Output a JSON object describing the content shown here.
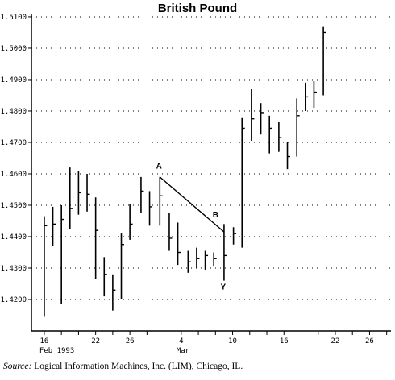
{
  "chart_data": {
    "type": "bar",
    "subtype": "ohlc-high-low-close",
    "title": "British Pound",
    "xlabel": "",
    "ylabel": "",
    "ylim": [
      1.41,
      1.5105
    ],
    "y_ticks": [
      "1.4200",
      "1.4300",
      "1.4400",
      "1.4500",
      "1.4600",
      "1.4700",
      "1.4800",
      "1.4900",
      "1.5000",
      "1.5100"
    ],
    "grid": "horizontal dotted",
    "x_ticks": [
      {
        "day": 16,
        "label": "16",
        "sub": "Feb 1993"
      },
      {
        "day": 18,
        "label": "",
        "sub": ""
      },
      {
        "day": 20,
        "label": "",
        "sub": ""
      },
      {
        "day": 22,
        "label": "22",
        "sub": ""
      },
      {
        "day": 24,
        "label": "",
        "sub": ""
      },
      {
        "day": 26,
        "label": "26",
        "sub": ""
      },
      {
        "day": 28,
        "label": "",
        "sub": ""
      },
      {
        "day": 32,
        "label": "4",
        "sub": "Mar"
      },
      {
        "day": 34,
        "label": "",
        "sub": ""
      },
      {
        "day": 36,
        "label": "",
        "sub": ""
      },
      {
        "day": 38,
        "label": "10",
        "sub": ""
      },
      {
        "day": 40,
        "label": "",
        "sub": ""
      },
      {
        "day": 42,
        "label": "",
        "sub": ""
      },
      {
        "day": 44,
        "label": "16",
        "sub": ""
      },
      {
        "day": 46,
        "label": "",
        "sub": ""
      },
      {
        "day": 48,
        "label": "",
        "sub": ""
      },
      {
        "day": 50,
        "label": "22",
        "sub": ""
      },
      {
        "day": 52,
        "label": "",
        "sub": ""
      },
      {
        "day": 54,
        "label": "26",
        "sub": ""
      },
      {
        "day": 56,
        "label": "",
        "sub": ""
      }
    ],
    "bars": [
      {
        "day": 16.0,
        "high": 1.4465,
        "low": 1.4145,
        "close": 1.4435
      },
      {
        "day": 17.0,
        "high": 1.4495,
        "low": 1.437,
        "close": 1.444
      },
      {
        "day": 18.0,
        "high": 1.45,
        "low": 1.4185,
        "close": 1.4455
      },
      {
        "day": 19.0,
        "high": 1.462,
        "low": 1.4425,
        "close": 1.449
      },
      {
        "day": 20.0,
        "high": 1.461,
        "low": 1.447,
        "close": 1.454
      },
      {
        "day": 21.0,
        "high": 1.46,
        "low": 1.448,
        "close": 1.4535
      },
      {
        "day": 22.0,
        "high": 1.4525,
        "low": 1.4265,
        "close": 1.442
      },
      {
        "day": 23.0,
        "high": 1.4335,
        "low": 1.421,
        "close": 1.428
      },
      {
        "day": 24.0,
        "high": 1.428,
        "low": 1.4165,
        "close": 1.423
      },
      {
        "day": 25.0,
        "high": 1.441,
        "low": 1.42,
        "close": 1.4375
      },
      {
        "day": 26.0,
        "high": 1.4505,
        "low": 1.439,
        "close": 1.444
      },
      {
        "day": 27.3,
        "high": 1.459,
        "low": 1.4475,
        "close": 1.4545
      },
      {
        "day": 28.3,
        "high": 1.4545,
        "low": 1.4435,
        "close": 1.4495
      },
      {
        "day": 29.5,
        "high": 1.459,
        "low": 1.4435,
        "close": 1.453
      },
      {
        "day": 30.6,
        "high": 1.4475,
        "low": 1.4355,
        "close": 1.4395
      },
      {
        "day": 31.6,
        "high": 1.4445,
        "low": 1.431,
        "close": 1.435
      },
      {
        "day": 32.8,
        "high": 1.4355,
        "low": 1.4285,
        "close": 1.432
      },
      {
        "day": 33.8,
        "high": 1.4365,
        "low": 1.43,
        "close": 1.433
      },
      {
        "day": 34.8,
        "high": 1.4355,
        "low": 1.4295,
        "close": 1.434
      },
      {
        "day": 35.8,
        "high": 1.435,
        "low": 1.4305,
        "close": 1.433
      },
      {
        "day": 37.0,
        "high": 1.444,
        "low": 1.426,
        "close": 1.434
      },
      {
        "day": 38.1,
        "high": 1.443,
        "low": 1.4375,
        "close": 1.441
      },
      {
        "day": 39.1,
        "high": 1.478,
        "low": 1.4365,
        "close": 1.4745
      },
      {
        "day": 40.2,
        "high": 1.487,
        "low": 1.4705,
        "close": 1.4775
      },
      {
        "day": 41.3,
        "high": 1.4825,
        "low": 1.4725,
        "close": 1.4795
      },
      {
        "day": 42.3,
        "high": 1.4785,
        "low": 1.4665,
        "close": 1.4745
      },
      {
        "day": 43.4,
        "high": 1.4765,
        "low": 1.467,
        "close": 1.4715
      },
      {
        "day": 44.4,
        "high": 1.47,
        "low": 1.4615,
        "close": 1.4655
      },
      {
        "day": 45.5,
        "high": 1.484,
        "low": 1.4655,
        "close": 1.4785
      },
      {
        "day": 46.5,
        "high": 1.489,
        "low": 1.48,
        "close": 1.4845
      },
      {
        "day": 47.5,
        "high": 1.4895,
        "low": 1.481,
        "close": 1.486
      },
      {
        "day": 48.6,
        "high": 1.507,
        "low": 1.485,
        "close": 1.505
      }
    ],
    "trendline": {
      "from": {
        "day": 29.5,
        "price": 1.459
      },
      "to": {
        "day": 37.0,
        "price": 1.4415
      }
    },
    "annotations": [
      {
        "label": "A",
        "day": 29.4,
        "price": 1.4617
      },
      {
        "label": "B",
        "day": 36.0,
        "price": 1.4462
      },
      {
        "label": "Y",
        "day": 36.9,
        "price": 1.4232
      }
    ]
  },
  "source": {
    "label": "Source:",
    "text": "Logical Information Machines, Inc. (LIM), Chicago, IL."
  }
}
